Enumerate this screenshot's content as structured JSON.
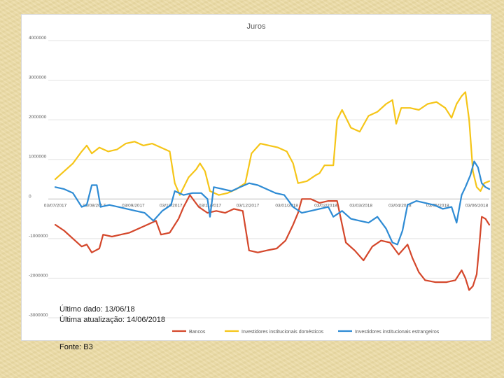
{
  "chart_data": {
    "type": "line",
    "title": "Juros",
    "xlabel": "",
    "ylabel": "",
    "ylim": [
      -3000000,
      4000000
    ],
    "y_ticks": [
      4000000,
      3000000,
      2000000,
      1000000,
      0,
      -1000000,
      -2000000,
      -3000000
    ],
    "y_tick_labels": [
      "4000000",
      "3000000",
      "2000000",
      "1000000",
      "0",
      "-1000000",
      "-2000000",
      "-3000000"
    ],
    "x_range": [
      "2017-07-03",
      "2018-06-13"
    ],
    "x_ticks": [
      "2017-07-03",
      "2017-08-03",
      "2017-09-03",
      "2017-10-03",
      "2017-11-03",
      "2017-12-03",
      "2018-01-03",
      "2018-02-03",
      "2018-03-03",
      "2018-04-03",
      "2018-05-03",
      "2018-06-03"
    ],
    "x_tick_labels": [
      "03/07/2017",
      "03/08/2017",
      "03/09/2017",
      "03/10/2017",
      "03/11/2017",
      "03/12/2017",
      "03/01/2018",
      "03/02/2018",
      "03/03/2018",
      "03/04/2018",
      "03/05/2018",
      "03/06/2018"
    ],
    "grid": true,
    "legend_position": "bottom",
    "series": [
      {
        "name": "Bancos",
        "color": "#d4472b",
        "points": [
          [
            "2017-07-03",
            -650000
          ],
          [
            "2017-07-10",
            -800000
          ],
          [
            "2017-07-17",
            -1000000
          ],
          [
            "2017-07-24",
            -1200000
          ],
          [
            "2017-07-28",
            -1150000
          ],
          [
            "2017-08-01",
            -1350000
          ],
          [
            "2017-08-07",
            -1250000
          ],
          [
            "2017-08-10",
            -900000
          ],
          [
            "2017-08-17",
            -950000
          ],
          [
            "2017-08-24",
            -900000
          ],
          [
            "2017-08-31",
            -850000
          ],
          [
            "2017-09-07",
            -750000
          ],
          [
            "2017-09-14",
            -650000
          ],
          [
            "2017-09-21",
            -550000
          ],
          [
            "2017-09-25",
            -900000
          ],
          [
            "2017-10-02",
            -850000
          ],
          [
            "2017-10-09",
            -500000
          ],
          [
            "2017-10-13",
            -200000
          ],
          [
            "2017-10-18",
            100000
          ],
          [
            "2017-10-25",
            -200000
          ],
          [
            "2017-11-01",
            -350000
          ],
          [
            "2017-11-08",
            -300000
          ],
          [
            "2017-11-15",
            -350000
          ],
          [
            "2017-11-22",
            -250000
          ],
          [
            "2017-11-29",
            -300000
          ],
          [
            "2017-12-04",
            -1300000
          ],
          [
            "2017-12-11",
            -1350000
          ],
          [
            "2017-12-18",
            -1300000
          ],
          [
            "2017-12-26",
            -1250000
          ],
          [
            "2018-01-02",
            -1050000
          ],
          [
            "2018-01-08",
            -650000
          ],
          [
            "2018-01-12",
            -350000
          ],
          [
            "2018-01-15",
            0
          ],
          [
            "2018-01-22",
            0
          ],
          [
            "2018-01-29",
            -100000
          ],
          [
            "2018-02-05",
            -50000
          ],
          [
            "2018-02-12",
            -50000
          ],
          [
            "2018-02-19",
            -1100000
          ],
          [
            "2018-02-26",
            -1300000
          ],
          [
            "2018-03-05",
            -1550000
          ],
          [
            "2018-03-12",
            -1200000
          ],
          [
            "2018-03-19",
            -1050000
          ],
          [
            "2018-03-26",
            -1100000
          ],
          [
            "2018-04-02",
            -1400000
          ],
          [
            "2018-04-09",
            -1150000
          ],
          [
            "2018-04-13",
            -1500000
          ],
          [
            "2018-04-18",
            -1850000
          ],
          [
            "2018-04-23",
            -2050000
          ],
          [
            "2018-05-01",
            -2100000
          ],
          [
            "2018-05-10",
            -2100000
          ],
          [
            "2018-05-17",
            -2050000
          ],
          [
            "2018-05-22",
            -1800000
          ],
          [
            "2018-05-25",
            -2000000
          ],
          [
            "2018-05-28",
            -2300000
          ],
          [
            "2018-05-31",
            -2200000
          ],
          [
            "2018-06-03",
            -1900000
          ],
          [
            "2018-06-05",
            -1200000
          ],
          [
            "2018-06-07",
            -450000
          ],
          [
            "2018-06-10",
            -500000
          ],
          [
            "2018-06-13",
            -650000
          ]
        ]
      },
      {
        "name": "Investidores institucionais domésticos",
        "color": "#f5c518",
        "points": [
          [
            "2017-07-03",
            500000
          ],
          [
            "2017-07-10",
            700000
          ],
          [
            "2017-07-17",
            900000
          ],
          [
            "2017-07-24",
            1200000
          ],
          [
            "2017-07-28",
            1350000
          ],
          [
            "2017-08-01",
            1150000
          ],
          [
            "2017-08-07",
            1300000
          ],
          [
            "2017-08-14",
            1200000
          ],
          [
            "2017-08-21",
            1250000
          ],
          [
            "2017-08-28",
            1400000
          ],
          [
            "2017-09-04",
            1450000
          ],
          [
            "2017-09-11",
            1350000
          ],
          [
            "2017-09-18",
            1400000
          ],
          [
            "2017-09-25",
            1300000
          ],
          [
            "2017-10-02",
            1200000
          ],
          [
            "2017-10-06",
            400000
          ],
          [
            "2017-10-10",
            100000
          ],
          [
            "2017-10-17",
            550000
          ],
          [
            "2017-10-23",
            750000
          ],
          [
            "2017-10-26",
            900000
          ],
          [
            "2017-10-30",
            700000
          ],
          [
            "2017-11-03",
            200000
          ],
          [
            "2017-11-10",
            100000
          ],
          [
            "2017-11-17",
            150000
          ],
          [
            "2017-11-24",
            250000
          ],
          [
            "2017-12-01",
            400000
          ],
          [
            "2017-12-06",
            1150000
          ],
          [
            "2017-12-13",
            1400000
          ],
          [
            "2017-12-20",
            1350000
          ],
          [
            "2017-12-27",
            1300000
          ],
          [
            "2018-01-03",
            1200000
          ],
          [
            "2018-01-08",
            900000
          ],
          [
            "2018-01-12",
            400000
          ],
          [
            "2018-01-19",
            450000
          ],
          [
            "2018-01-26",
            600000
          ],
          [
            "2018-01-29",
            650000
          ],
          [
            "2018-02-02",
            850000
          ],
          [
            "2018-02-09",
            850000
          ],
          [
            "2018-02-12",
            2000000
          ],
          [
            "2018-02-16",
            2250000
          ],
          [
            "2018-02-23",
            1800000
          ],
          [
            "2018-03-02",
            1700000
          ],
          [
            "2018-03-09",
            2100000
          ],
          [
            "2018-03-16",
            2200000
          ],
          [
            "2018-03-23",
            2400000
          ],
          [
            "2018-03-28",
            2500000
          ],
          [
            "2018-03-31",
            1900000
          ],
          [
            "2018-04-04",
            2300000
          ],
          [
            "2018-04-11",
            2300000
          ],
          [
            "2018-04-18",
            2250000
          ],
          [
            "2018-04-25",
            2400000
          ],
          [
            "2018-05-02",
            2450000
          ],
          [
            "2018-05-09",
            2300000
          ],
          [
            "2018-05-14",
            2050000
          ],
          [
            "2018-05-18",
            2400000
          ],
          [
            "2018-05-22",
            2600000
          ],
          [
            "2018-05-25",
            2700000
          ],
          [
            "2018-05-28",
            2000000
          ],
          [
            "2018-05-31",
            700000
          ],
          [
            "2018-06-03",
            300000
          ],
          [
            "2018-06-06",
            200000
          ],
          [
            "2018-06-09",
            400000
          ],
          [
            "2018-06-13",
            450000
          ]
        ]
      },
      {
        "name": "Investidores institucionais estrangeiros",
        "color": "#2e8bd4",
        "points": [
          [
            "2017-07-03",
            300000
          ],
          [
            "2017-07-10",
            250000
          ],
          [
            "2017-07-17",
            150000
          ],
          [
            "2017-07-24",
            -200000
          ],
          [
            "2017-07-28",
            -150000
          ],
          [
            "2017-08-01",
            350000
          ],
          [
            "2017-08-05",
            350000
          ],
          [
            "2017-08-08",
            -200000
          ],
          [
            "2017-08-15",
            -150000
          ],
          [
            "2017-08-22",
            -200000
          ],
          [
            "2017-08-29",
            -250000
          ],
          [
            "2017-09-05",
            -300000
          ],
          [
            "2017-09-12",
            -350000
          ],
          [
            "2017-09-19",
            -550000
          ],
          [
            "2017-09-26",
            -300000
          ],
          [
            "2017-10-03",
            -150000
          ],
          [
            "2017-10-06",
            200000
          ],
          [
            "2017-10-13",
            100000
          ],
          [
            "2017-10-20",
            150000
          ],
          [
            "2017-10-27",
            150000
          ],
          [
            "2017-11-01",
            0
          ],
          [
            "2017-11-03",
            -450000
          ],
          [
            "2017-11-06",
            300000
          ],
          [
            "2017-11-13",
            250000
          ],
          [
            "2017-11-20",
            200000
          ],
          [
            "2017-11-27",
            300000
          ],
          [
            "2017-12-04",
            400000
          ],
          [
            "2017-12-11",
            350000
          ],
          [
            "2017-12-18",
            250000
          ],
          [
            "2017-12-25",
            150000
          ],
          [
            "2018-01-01",
            100000
          ],
          [
            "2018-01-08",
            -200000
          ],
          [
            "2018-01-15",
            -350000
          ],
          [
            "2018-01-22",
            -300000
          ],
          [
            "2018-01-29",
            -250000
          ],
          [
            "2018-02-05",
            -200000
          ],
          [
            "2018-02-09",
            -450000
          ],
          [
            "2018-02-16",
            -300000
          ],
          [
            "2018-02-23",
            -500000
          ],
          [
            "2018-03-02",
            -550000
          ],
          [
            "2018-03-09",
            -600000
          ],
          [
            "2018-03-16",
            -450000
          ],
          [
            "2018-03-23",
            -750000
          ],
          [
            "2018-03-28",
            -1100000
          ],
          [
            "2018-04-01",
            -1150000
          ],
          [
            "2018-04-05",
            -800000
          ],
          [
            "2018-04-09",
            -150000
          ],
          [
            "2018-04-16",
            -50000
          ],
          [
            "2018-04-23",
            -100000
          ],
          [
            "2018-04-30",
            -150000
          ],
          [
            "2018-05-07",
            -250000
          ],
          [
            "2018-05-14",
            -200000
          ],
          [
            "2018-05-18",
            -600000
          ],
          [
            "2018-05-22",
            100000
          ],
          [
            "2018-05-25",
            300000
          ],
          [
            "2018-05-29",
            600000
          ],
          [
            "2018-06-01",
            950000
          ],
          [
            "2018-06-04",
            800000
          ],
          [
            "2018-06-07",
            400000
          ],
          [
            "2018-06-10",
            300000
          ],
          [
            "2018-06-13",
            250000
          ]
        ]
      }
    ]
  },
  "notes": {
    "last_data": "Último dado: 13/06/18",
    "last_update": "Última atualização: 14/06/2018"
  },
  "source": "Fonte: B3"
}
